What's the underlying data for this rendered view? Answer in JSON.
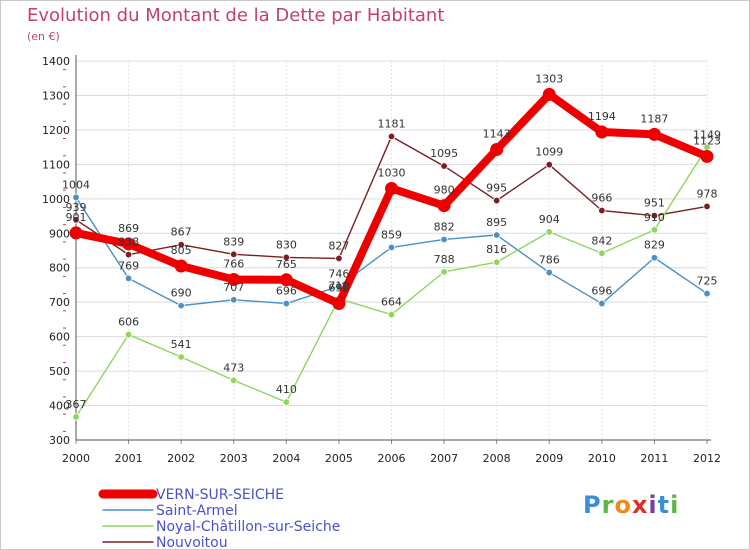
{
  "header": {
    "title": "Evolution du Montant de la Dette par Habitant",
    "unit": "(en €)"
  },
  "brand": {
    "letters": [
      "P",
      "r",
      "o",
      "x",
      "i",
      "t",
      "i"
    ],
    "letter_colors": [
      "#3a8fd6",
      "#5bb846",
      "#f08a1c",
      "#d8322b",
      "#7a3fa8",
      "#3a8fd6",
      "#5bb846"
    ]
  },
  "chart_data": {
    "type": "line",
    "title": "Evolution du Montant de la Dette par Habitant",
    "subtitle": "(en €)",
    "xlabel": "",
    "ylabel": "",
    "x": [
      "2000",
      "2001",
      "2002",
      "2003",
      "2004",
      "2005",
      "2006",
      "2007",
      "2008",
      "2009",
      "2010",
      "2011",
      "2012"
    ],
    "ylim": [
      300,
      1400
    ],
    "yticks": [
      300,
      400,
      500,
      600,
      700,
      800,
      900,
      1000,
      1100,
      1200,
      1300,
      1400
    ],
    "grid": true,
    "legend_position": "bottom-left",
    "series": [
      {
        "name": "Nouvoitou",
        "color": "#7a1e22",
        "values": [
          939,
          838,
          867,
          839,
          830,
          827,
          1181,
          1095,
          995,
          1099,
          966,
          951,
          978
        ],
        "labels": [
          "939",
          "838",
          "867",
          "839",
          "830",
          "827",
          "1181",
          "1095",
          "995",
          "1099",
          "966",
          "951",
          "978"
        ]
      },
      {
        "name": "Saint-Armel",
        "color": "#4a90c8",
        "values": [
          1004,
          769,
          690,
          707,
          696,
          746,
          859,
          882,
          895,
          786,
          696,
          829,
          725
        ],
        "labels": [
          "1004",
          "769",
          "690",
          "707",
          "696",
          "746",
          "859",
          "882",
          "895",
          "786",
          "696",
          "829",
          "725"
        ]
      },
      {
        "name": "Noyal-Châtillon-sur-Seiche",
        "color": "#8ed65e",
        "values": [
          367,
          606,
          541,
          473,
          410,
          710,
          664,
          788,
          816,
          904,
          842,
          910,
          1149
        ],
        "labels": [
          "367",
          "606",
          "541",
          "473",
          "410",
          "710",
          "664",
          "788",
          "816",
          "904",
          "842",
          "910",
          "1149"
        ]
      },
      {
        "name": "VERN-SUR-SEICHE",
        "color": "#ee0000",
        "values": [
          901,
          869,
          805,
          766,
          765,
          696,
          1030,
          980,
          1143,
          1303,
          1194,
          1187,
          1123
        ],
        "labels": [
          "901",
          "869",
          "805",
          "766",
          "765",
          "696",
          "1030",
          "980",
          "1143",
          "1303",
          "1194",
          "1187",
          "1123"
        ]
      }
    ],
    "legend_order": [
      "VERN-SUR-SEICHE",
      "Saint-Armel",
      "Noyal-Châtillon-sur-Seiche",
      "Nouvoitou"
    ]
  }
}
